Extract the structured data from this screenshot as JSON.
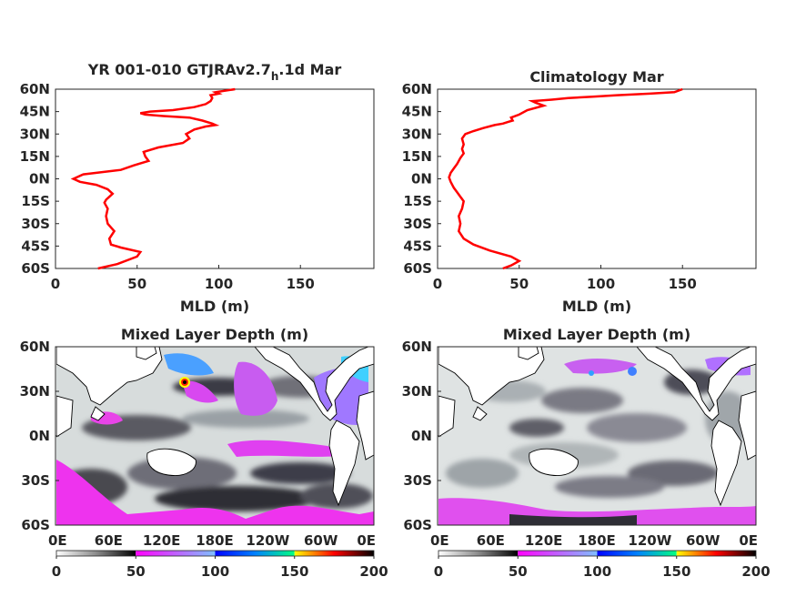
{
  "chart_data": [
    {
      "type": "line",
      "title": "YR 001-010 GTJRAv2.7",
      "title_sub": "h",
      "title_tail": ".1d Mar",
      "xlabel": "MLD (m)",
      "ylabel": "",
      "xlim": [
        0,
        195
      ],
      "ylim": [
        -60,
        60
      ],
      "xticks": [
        0,
        50,
        100,
        150
      ],
      "yticks": [
        "60N",
        "45N",
        "30N",
        "15N",
        "0N",
        "15S",
        "30S",
        "45S",
        "60S"
      ],
      "line_color": "#ff0000",
      "series": [
        {
          "x": [
            26,
            38,
            50,
            52,
            40,
            34,
            33,
            36,
            32,
            31,
            32,
            30,
            31,
            33,
            35,
            32,
            25,
            15,
            11,
            17,
            40,
            48,
            57,
            55,
            54,
            63,
            78,
            82,
            80,
            85,
            92,
            98,
            96,
            90,
            82,
            66,
            55,
            52,
            58,
            72,
            85,
            92,
            95,
            96,
            95,
            100,
            98,
            110
          ],
          "y": [
            -60,
            -57,
            -52,
            -49,
            -46,
            -44,
            -40,
            -35,
            -30,
            -25,
            -20,
            -16,
            -14,
            -12,
            -10,
            -7,
            -4,
            -2,
            0,
            3,
            6,
            9,
            12,
            15,
            18,
            21,
            24,
            27,
            30,
            33,
            35,
            36,
            37,
            39,
            41,
            42,
            43,
            44,
            45,
            46,
            48,
            50,
            52,
            54,
            56,
            57,
            58,
            60
          ]
        }
      ]
    },
    {
      "type": "line",
      "title": "Climatology Mar",
      "xlabel": "MLD (m)",
      "ylabel": "",
      "xlim": [
        0,
        195
      ],
      "ylim": [
        -60,
        60
      ],
      "xticks": [
        0,
        50,
        100,
        150
      ],
      "yticks": [
        "60N",
        "45N",
        "30N",
        "15N",
        "0N",
        "15S",
        "30S",
        "45S",
        "60S"
      ],
      "line_color": "#ff0000",
      "series": [
        {
          "x": [
            40,
            45,
            50,
            45,
            32,
            22,
            16,
            13,
            14,
            13,
            15,
            16,
            14,
            12,
            10,
            8,
            7,
            8,
            10,
            12,
            14,
            16,
            15,
            16,
            15,
            17,
            22,
            28,
            35,
            40,
            43,
            46,
            45,
            50,
            55,
            65,
            60,
            58,
            70,
            80,
            95,
            110,
            130,
            145,
            150
          ],
          "y": [
            -60,
            -58,
            -55,
            -52,
            -48,
            -44,
            -40,
            -35,
            -30,
            -25,
            -20,
            -15,
            -12,
            -9,
            -6,
            -2,
            1,
            4,
            7,
            10,
            14,
            17,
            20,
            23,
            27,
            30,
            32,
            34,
            36,
            37,
            38,
            39,
            41,
            43,
            46,
            49,
            51,
            52,
            53,
            54,
            55,
            56,
            57,
            58,
            60
          ]
        }
      ]
    },
    {
      "type": "heatmap",
      "title": "Mixed Layer Depth (m)",
      "xticks": [
        "0E",
        "60E",
        "120E",
        "180E",
        "120W",
        "60W",
        "0E"
      ],
      "yticks": [
        "60N",
        "30N",
        "0N",
        "30S",
        "60S"
      ],
      "colorbar_ticks": [
        0,
        50,
        100,
        150,
        200
      ],
      "colorbar_range": [
        0,
        200
      ]
    },
    {
      "type": "heatmap",
      "title": "Mixed Layer Depth (m)",
      "xticks": [
        "0E",
        "60E",
        "120E",
        "180E",
        "120W",
        "60W",
        "0E"
      ],
      "yticks": [
        "60N",
        "30N",
        "0N",
        "30S",
        "60S"
      ],
      "colorbar_ticks": [
        0,
        50,
        100,
        150,
        200
      ],
      "colorbar_range": [
        0,
        200
      ]
    }
  ]
}
